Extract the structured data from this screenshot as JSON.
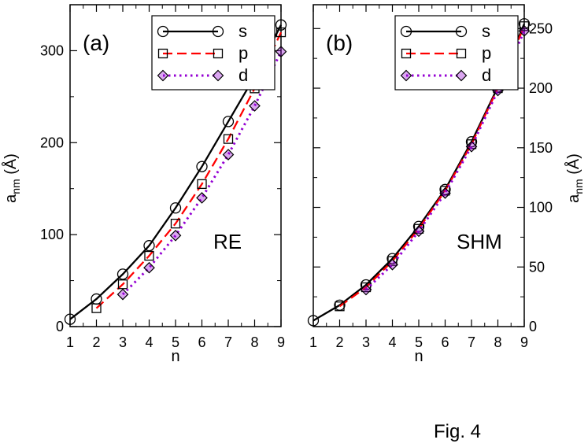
{
  "figure_caption": "Fig. 4",
  "colors": {
    "s": "#000000",
    "p": "#ff0000",
    "d": "#9400d3"
  },
  "chart_data": [
    {
      "type": "line",
      "panel_label": "(a)",
      "model_label": "RE",
      "xlabel": "n",
      "ylabel": "a_nm (Å)",
      "ylabel_parts": {
        "base": "a",
        "sub": "nm",
        "unit": "(Å)"
      },
      "ylabel_side": "left",
      "xlim": [
        1,
        9
      ],
      "ylim": [
        0,
        350
      ],
      "x_ticks": [
        1,
        2,
        3,
        4,
        5,
        6,
        7,
        8,
        9
      ],
      "x_tick_labels": [
        "1",
        "2",
        "3",
        "4",
        "5",
        "6",
        "7",
        "8",
        "9"
      ],
      "y_ticks": [
        0,
        100,
        200,
        300
      ],
      "y_tick_labels": [
        "0",
        "100",
        "200",
        "300"
      ],
      "y_minor_step": 50,
      "legend_position": "top-right",
      "series": [
        {
          "name": "s",
          "style": "solid",
          "marker": "circle",
          "color_key": "s",
          "x": [
            1,
            2,
            3,
            4,
            5,
            6,
            7,
            8,
            9
          ],
          "values": [
            8,
            30,
            57,
            88,
            129,
            174,
            223,
            272,
            328
          ]
        },
        {
          "name": "p",
          "style": "dashed",
          "marker": "square",
          "color_key": "p",
          "x": [
            2,
            3,
            4,
            5,
            6,
            7,
            8,
            9
          ],
          "values": [
            20,
            46,
            77,
            112,
            155,
            204,
            259,
            320
          ]
        },
        {
          "name": "d",
          "style": "dotted",
          "marker": "diamond",
          "color_key": "d",
          "x": [
            3,
            4,
            5,
            6,
            7,
            8,
            9
          ],
          "values": [
            35,
            64,
            99,
            140,
            187,
            240,
            299
          ]
        }
      ]
    },
    {
      "type": "line",
      "panel_label": "(b)",
      "model_label": "SHM",
      "xlabel": "n",
      "ylabel": "a_nm (Å)",
      "ylabel_parts": {
        "base": "a",
        "sub": "nm",
        "unit": "(Å)"
      },
      "ylabel_side": "right",
      "xlim": [
        1,
        9
      ],
      "ylim": [
        0,
        270
      ],
      "x_ticks": [
        1,
        2,
        3,
        4,
        5,
        6,
        7,
        8,
        9
      ],
      "x_tick_labels": [
        "1",
        "2",
        "3",
        "4",
        "5",
        "6",
        "7",
        "8",
        "9"
      ],
      "y_ticks": [
        0,
        50,
        100,
        150,
        200,
        250
      ],
      "y_tick_labels": [
        "0",
        "50",
        "100",
        "150",
        "200",
        "250"
      ],
      "y_minor_step": 25,
      "legend_position": "top-right",
      "series": [
        {
          "name": "s",
          "style": "solid",
          "marker": "circle",
          "color_key": "s",
          "x": [
            1,
            2,
            3,
            4,
            5,
            6,
            7,
            8,
            9
          ],
          "values": [
            5,
            18,
            35,
            57,
            84,
            115,
            155,
            201,
            254
          ]
        },
        {
          "name": "p",
          "style": "dashed",
          "marker": "square",
          "color_key": "p",
          "x": [
            2,
            3,
            4,
            5,
            6,
            7,
            8,
            9
          ],
          "values": [
            17,
            33,
            55,
            82,
            114,
            153,
            200,
            252
          ]
        },
        {
          "name": "d",
          "style": "dotted",
          "marker": "diamond",
          "color_key": "d",
          "x": [
            3,
            4,
            5,
            6,
            7,
            8,
            9
          ],
          "values": [
            31,
            52,
            80,
            112,
            151,
            198,
            248
          ]
        }
      ]
    }
  ]
}
